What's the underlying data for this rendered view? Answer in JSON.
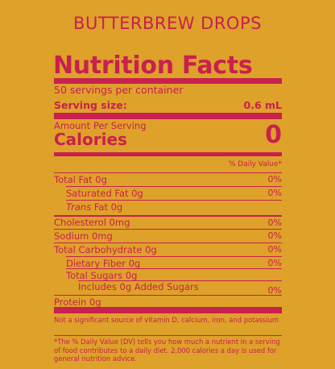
{
  "product_name": "BUTTERBREW DROPS",
  "heading": "Nutrition Facts",
  "servings_per_container": "50 servings per container",
  "serving_size_label": "Serving size:",
  "serving_size_value": "0.6 mL",
  "amount_per_serving": "Amount Per Serving",
  "calories_label": "Calories",
  "calories_value": "0",
  "daily_value_header": "% Daily Value*",
  "nutrients": [
    {
      "label": "Total Fat 0g",
      "dv": "0%"
    },
    {
      "label": "Saturated Fat 0g",
      "dv": "0%"
    },
    {
      "label_italic": "Trans",
      "label": " Fat 0g",
      "dv": ""
    },
    {
      "label": "Cholesterol 0mg",
      "dv": "0%"
    },
    {
      "label": "Sodium 0mg",
      "dv": "0%"
    },
    {
      "label": "Total Carbohydrate 0g",
      "dv": "0%"
    },
    {
      "label": "Dietary Fiber 0g",
      "dv": "0%"
    },
    {
      "label": "Total Sugars 0g",
      "dv": ""
    },
    {
      "label": "Includes 0g Added Sugars",
      "dv": "0%"
    },
    {
      "label": "Protein 0g",
      "dv": ""
    }
  ],
  "footnote_1": "Not a significant source of vitamin D, calcium, iron, and potassium",
  "footnote_2": "*The % Daily Value (DV) tells you how much a nutrient in a serving of food contributes to a daily diet. 2,000 calories a day is used for general nutrition advice.",
  "colors": {
    "background": "#dea12a",
    "accent": "#c8204f"
  }
}
